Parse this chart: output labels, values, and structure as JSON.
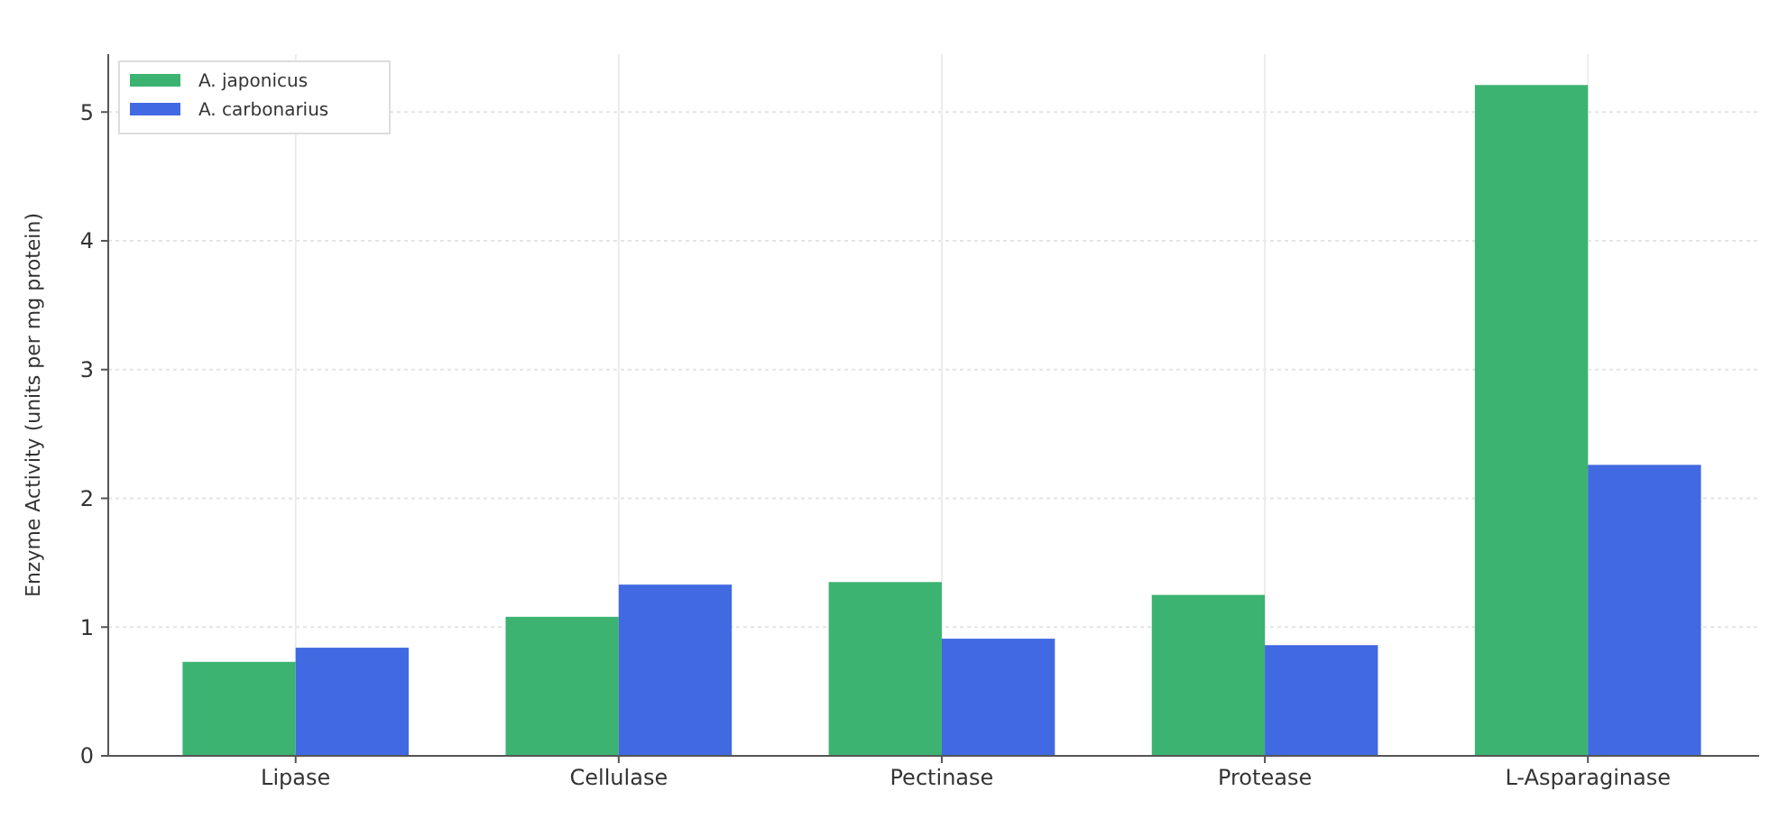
{
  "chart_data": {
    "type": "bar",
    "ylabel": "Enzyme Activity (units per mg protein)",
    "categories": [
      "Lipase",
      "Cellulase",
      "Pectinase",
      "Protease",
      "L-Asparaginase"
    ],
    "series": [
      {
        "name": "A. japonicus",
        "color": "#3cb371",
        "values": [
          0.73,
          1.08,
          1.35,
          1.25,
          5.21
        ]
      },
      {
        "name": "A. carbonarius",
        "color": "#4169e1",
        "values": [
          0.84,
          1.33,
          0.91,
          0.86,
          2.26
        ]
      }
    ],
    "ylim": [
      0,
      5.45
    ],
    "yticks": [
      0,
      1,
      2,
      3,
      4,
      5
    ],
    "grid": true,
    "legend": "top left"
  }
}
